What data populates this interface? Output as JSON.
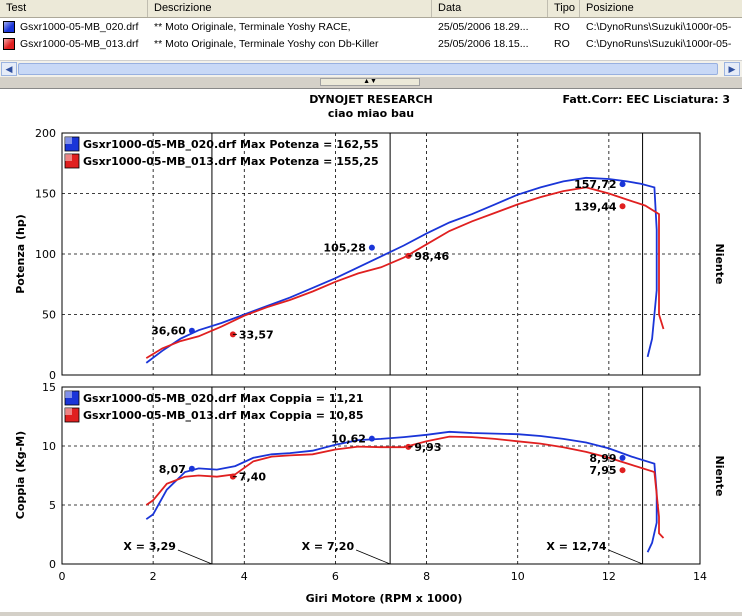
{
  "file_list": {
    "columns": [
      "Test",
      "Descrizione",
      "Data",
      "Tipo",
      "Posizione"
    ],
    "rows": [
      {
        "color": "#1a35d8",
        "test": "Gsxr1000-05-MB_020.drf",
        "descrizione": "** Moto Originale, Terminale Yoshy RACE,",
        "data": "25/05/2006 18.29...",
        "tipo": "RO",
        "posizione": "C:\\DynoRuns\\Suzuki\\1000r-05-"
      },
      {
        "color": "#e02020",
        "test": "Gsxr1000-05-MB_013.drf",
        "descrizione": "** Moto Originale, Terminale Yoshy con Db-Killer",
        "data": "25/05/2006 18.15...",
        "tipo": "RO",
        "posizione": "C:\\DynoRuns\\Suzuki\\1000r-05-"
      }
    ],
    "scroll_left_icon": "arrow-left-icon",
    "scroll_right_icon": "arrow-right-icon",
    "splitter_icon": "splitter-arrows-icon",
    "splitter_label": "▲▼"
  },
  "report": {
    "company": "DYNOJET RESEARCH",
    "subtitle": "ciao miao bau",
    "fatt_corr": "Fatt.Corr: EEC  Lisciatura: 3",
    "right_label_top": "Niente",
    "right_label_bottom": "Niente",
    "x_axis_label": "Giri Motore (RPM x 1000)"
  },
  "chart_data": [
    {
      "type": "line",
      "ylabel": "Potenza (hp)",
      "xlabel": "Giri Motore (RPM x 1000)",
      "xlim": [
        0,
        14
      ],
      "ylim": [
        0,
        200
      ],
      "xticks": [
        0,
        2,
        4,
        6,
        8,
        10,
        12,
        14
      ],
      "yticks": [
        0,
        50,
        100,
        150,
        200
      ],
      "grid": true,
      "legend_position": "top-left",
      "legend": [
        "Gsxr1000-05-MB_020.drf Max Potenza = 162,55",
        "Gsxr1000-05-MB_013.drf Max Potenza = 155,25"
      ],
      "series": [
        {
          "color": "#1a35d8",
          "x": [
            1.85,
            2.2,
            2.6,
            3.0,
            3.5,
            4.0,
            4.5,
            5.0,
            5.5,
            6.0,
            6.5,
            7.0,
            7.5,
            8.0,
            8.5,
            9.0,
            9.5,
            10.0,
            10.5,
            11.0,
            11.5,
            12.0,
            12.4,
            12.7,
            13.0,
            13.05,
            13.05,
            12.95,
            12.85
          ],
          "y": [
            10,
            20,
            30,
            37,
            43,
            50,
            57,
            64,
            72,
            80,
            89,
            98,
            107,
            117,
            126,
            133,
            141,
            149,
            155,
            160,
            163,
            162,
            160,
            158,
            155,
            120,
            70,
            30,
            15
          ]
        },
        {
          "color": "#e02020",
          "x": [
            1.85,
            2.2,
            2.6,
            3.0,
            3.5,
            4.0,
            4.5,
            5.0,
            5.5,
            6.0,
            6.5,
            7.0,
            7.5,
            8.0,
            8.5,
            9.0,
            9.5,
            10.0,
            10.5,
            11.0,
            11.5,
            12.0,
            12.4,
            12.8,
            13.1,
            13.1,
            13.1,
            13.2
          ],
          "y": [
            14,
            22,
            28,
            32,
            40,
            49,
            56,
            62,
            69,
            77,
            84,
            89,
            97,
            108,
            119,
            127,
            134,
            141,
            147,
            152,
            155,
            150,
            145,
            140,
            133,
            90,
            50,
            38
          ]
        }
      ],
      "annotations": [
        {
          "x": 2.85,
          "y": 36.6,
          "label": "36,60",
          "series": 0,
          "side": "left"
        },
        {
          "x": 3.75,
          "y": 33.57,
          "label": "33,57",
          "series": 1,
          "side": "right"
        },
        {
          "x": 6.8,
          "y": 105.28,
          "label": "105,28",
          "series": 0,
          "side": "left"
        },
        {
          "x": 7.6,
          "y": 98.46,
          "label": "98,46",
          "series": 1,
          "side": "right"
        },
        {
          "x": 12.3,
          "y": 157.72,
          "label": "157,72",
          "series": 0,
          "side": "left"
        },
        {
          "x": 12.3,
          "y": 139.44,
          "label": "139,44",
          "series": 1,
          "side": "left"
        }
      ]
    },
    {
      "type": "line",
      "ylabel": "Coppia (Kg-M)",
      "xlabel": "Giri Motore (RPM x 1000)",
      "xlim": [
        0,
        14
      ],
      "ylim": [
        0,
        15
      ],
      "xticks": [
        0,
        2,
        4,
        6,
        8,
        10,
        12,
        14
      ],
      "yticks": [
        0,
        5,
        10,
        15
      ],
      "grid": true,
      "legend_position": "top-left",
      "legend": [
        "Gsxr1000-05-MB_020.drf Max Coppia = 11,21",
        "Gsxr1000-05-MB_013.drf Max Coppia = 10,85"
      ],
      "series": [
        {
          "color": "#1a35d8",
          "x": [
            1.85,
            2.0,
            2.3,
            2.7,
            3.0,
            3.4,
            3.8,
            4.2,
            4.6,
            5.0,
            5.5,
            6.0,
            6.5,
            7.0,
            7.5,
            8.0,
            8.5,
            9.0,
            9.5,
            10.0,
            10.5,
            11.0,
            11.5,
            12.0,
            12.5,
            13.0,
            13.05,
            13.05,
            12.95,
            12.85
          ],
          "y": [
            3.8,
            4.2,
            6.3,
            7.8,
            8.1,
            8.0,
            8.3,
            9.0,
            9.3,
            9.4,
            9.6,
            10.1,
            10.5,
            10.6,
            10.75,
            10.95,
            11.2,
            11.1,
            11.05,
            11.0,
            10.85,
            10.6,
            10.3,
            9.8,
            9.1,
            8.5,
            6.0,
            3.5,
            1.8,
            1.0
          ]
        },
        {
          "color": "#e02020",
          "x": [
            1.85,
            2.0,
            2.3,
            2.7,
            3.0,
            3.4,
            3.8,
            4.2,
            4.6,
            5.0,
            5.5,
            6.0,
            6.5,
            7.0,
            7.5,
            8.0,
            8.5,
            9.0,
            9.5,
            10.0,
            10.5,
            11.0,
            11.5,
            12.0,
            12.5,
            13.0,
            13.1,
            13.1,
            13.2
          ],
          "y": [
            5.0,
            5.4,
            6.8,
            7.4,
            7.5,
            7.4,
            7.6,
            8.7,
            9.1,
            9.2,
            9.3,
            9.7,
            9.95,
            9.9,
            9.9,
            10.4,
            10.8,
            10.75,
            10.6,
            10.4,
            10.2,
            9.9,
            9.5,
            9.0,
            8.4,
            7.8,
            4.0,
            2.6,
            2.2
          ]
        }
      ],
      "annotations": [
        {
          "x": 2.85,
          "y": 8.07,
          "label": "8,07",
          "series": 0,
          "side": "left"
        },
        {
          "x": 3.75,
          "y": 7.4,
          "label": "7,40",
          "series": 1,
          "side": "right"
        },
        {
          "x": 6.8,
          "y": 10.62,
          "label": "10,62",
          "series": 0,
          "side": "left"
        },
        {
          "x": 7.6,
          "y": 9.93,
          "label": "9,93",
          "series": 1,
          "side": "right"
        },
        {
          "x": 12.3,
          "y": 8.99,
          "label": "8,99",
          "series": 0,
          "side": "left"
        },
        {
          "x": 12.3,
          "y": 7.95,
          "label": "7,95",
          "series": 1,
          "side": "left"
        }
      ],
      "markers": [
        {
          "x": 3.29,
          "label": "X = 3,29"
        },
        {
          "x": 7.2,
          "label": "X = 7,20"
        },
        {
          "x": 12.74,
          "label": "X = 12,74"
        }
      ]
    }
  ]
}
